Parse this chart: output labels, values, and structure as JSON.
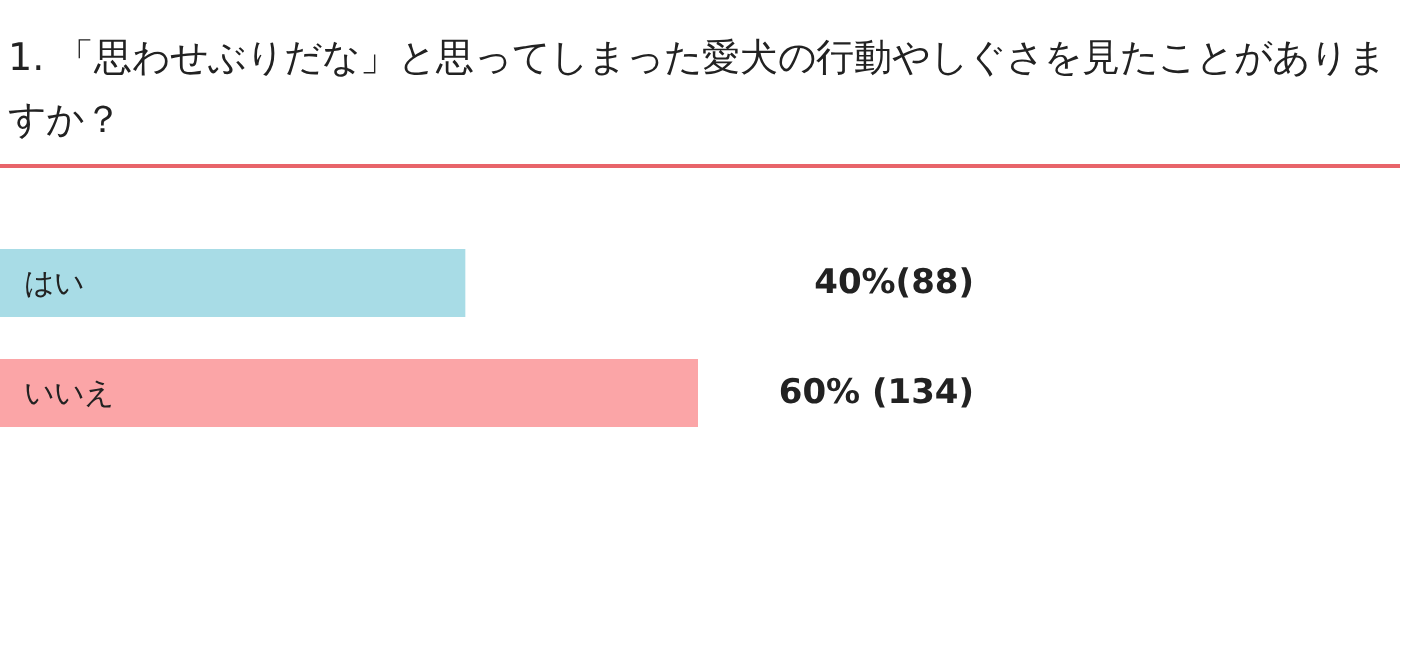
{
  "chart_data": {
    "type": "bar",
    "orientation": "horizontal",
    "title": "1. 「思わせぶりだな」と思ってしまった愛犬の行動やしぐさを見たことがありますか？",
    "categories": [
      "はい",
      "いいえ"
    ],
    "values": [
      40,
      60
    ],
    "colors": [
      "#a8dce6",
      "#fba5a7"
    ],
    "value_labels": [
      "40%(88)",
      "60% (134)"
    ]
  }
}
